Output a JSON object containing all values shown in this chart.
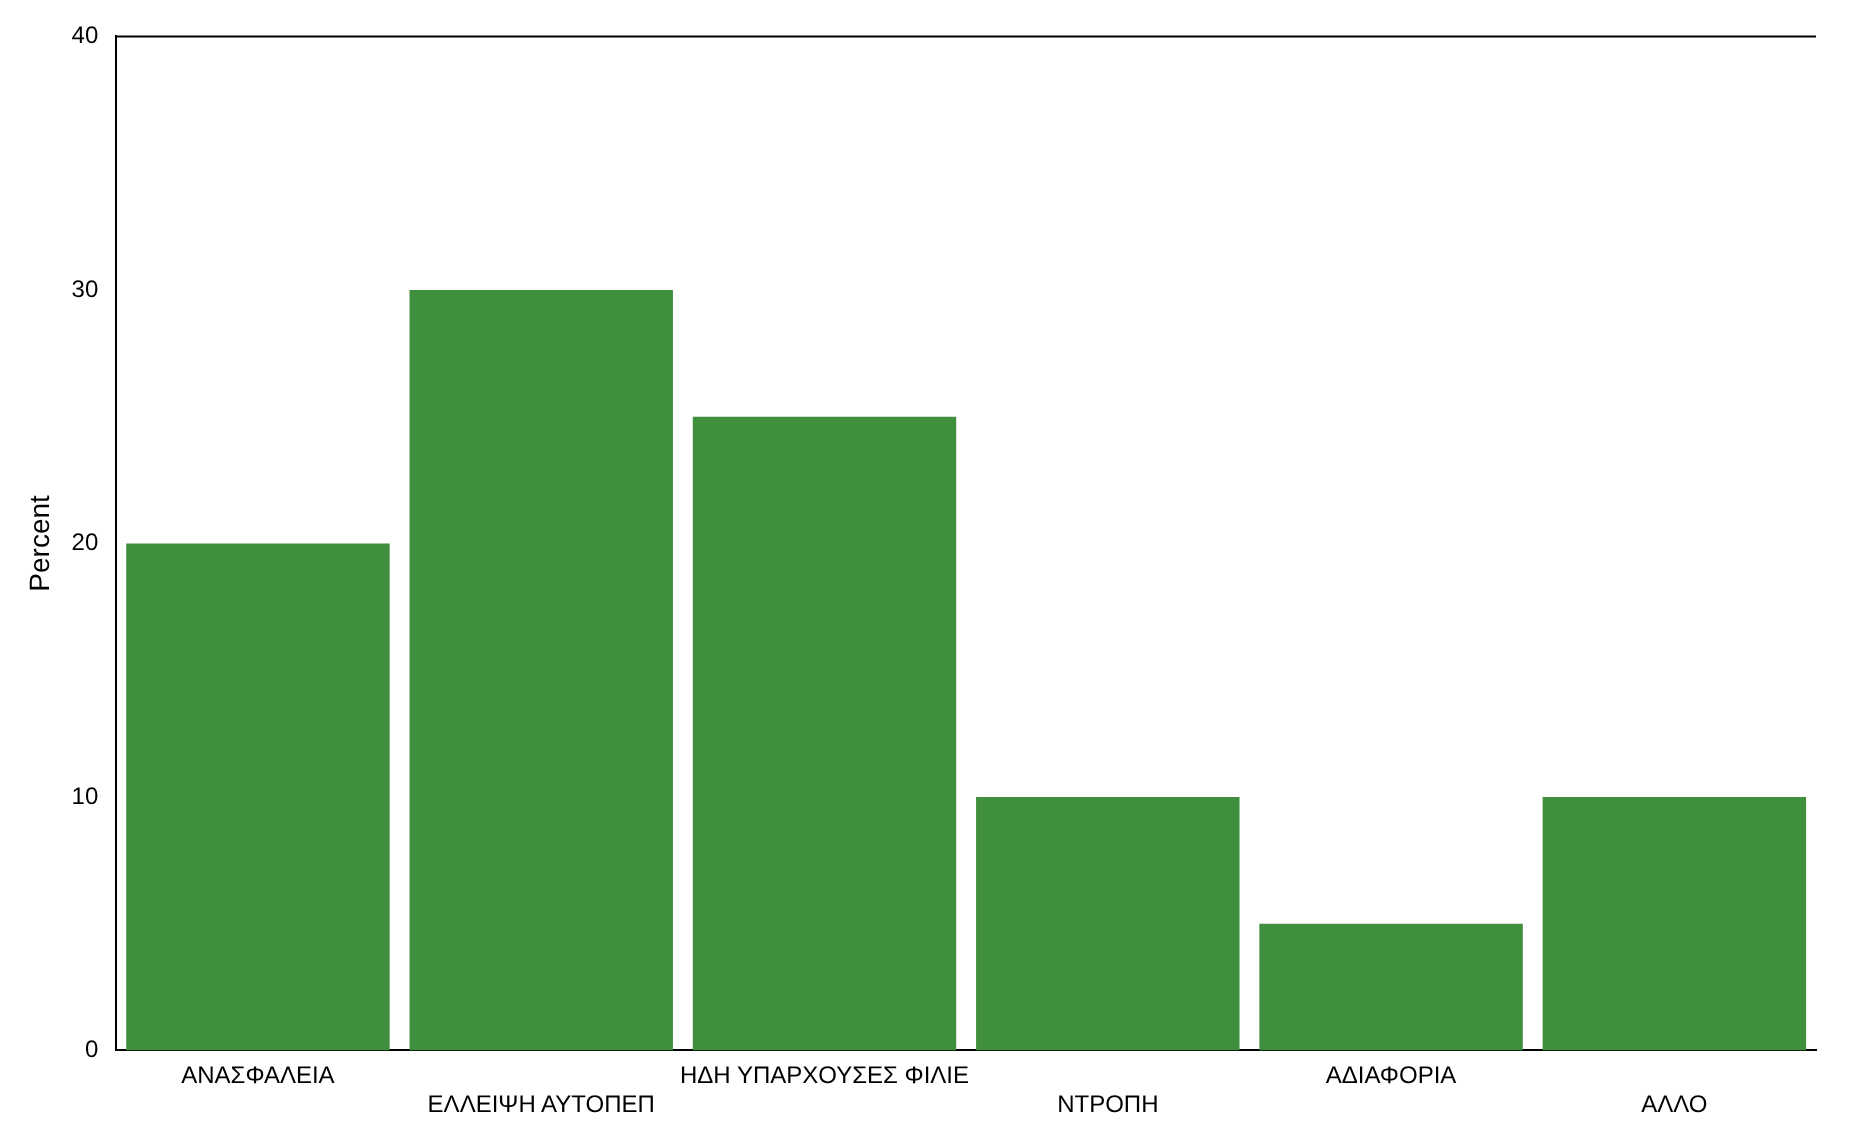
{
  "chart_data": {
    "type": "bar",
    "ylabel": "Percent",
    "categories": [
      "ΑΝΑΣΦΑΛΕΙΑ",
      "ΕΛΛΕΙΨΗ ΑΥΤΟΠΕΠ",
      "ΗΔΗ ΥΠΑΡΧΟΥΣΕΣ ΦΙΛΙΕ",
      "ΝΤΡΟΠΗ",
      "ΑΔΙΑΦΟΡΙΑ",
      "ΑΛΛΟ"
    ],
    "values": [
      20,
      30,
      25,
      10,
      5,
      10
    ],
    "color": "#3f8f3f",
    "ylim": [
      0,
      40
    ],
    "yticks": [
      0,
      10,
      20,
      30,
      40
    ],
    "grid": false,
    "legend": false
  }
}
